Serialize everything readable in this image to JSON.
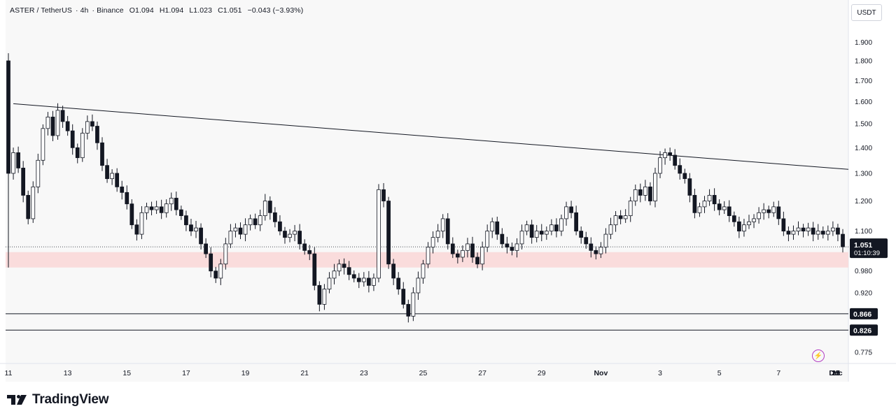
{
  "header": {
    "symbol": "ASTER / TetherUS",
    "interval": "4h",
    "exchange": "Binance",
    "open": "O1.094",
    "high": "H1.094",
    "low": "L1.023",
    "close": "C1.051",
    "change": "−0.043 (−3.93%)"
  },
  "price_scale": {
    "unit": "USDT",
    "current_price": "1.051",
    "countdown": "01:10:39",
    "level_labels": [
      "0.866",
      "0.826"
    ]
  },
  "brand": {
    "name": "TradingView"
  },
  "colors": {
    "candle": "#131722",
    "background": "#ffffff",
    "plot_background": "#f8f8f8",
    "support_zone": "#fadcdc",
    "trendline": "#131722",
    "flash_icon": "#b33fc2"
  },
  "icons": {
    "flash": "lightning-icon",
    "brand": "tradingview-logo-icon"
  },
  "chart_data": {
    "type": "candlestick",
    "title": "",
    "x_tick_labels": [
      "11",
      "13",
      "15",
      "17",
      "19",
      "21",
      "23",
      "25",
      "27",
      "29",
      "Nov",
      "3",
      "5",
      "7",
      "9",
      "11",
      "13",
      "15",
      "17",
      "19",
      "21",
      "23",
      "25",
      "27",
      "29",
      "Dec"
    ],
    "x_tick_index": [
      0,
      12,
      24,
      36,
      48,
      60,
      72,
      84,
      96,
      108,
      120,
      132,
      144,
      156,
      168,
      180,
      192,
      204,
      216,
      228,
      240,
      252,
      264,
      276,
      288,
      300
    ],
    "y_tick_labels": [
      "1.900",
      "1.800",
      "1.700",
      "1.600",
      "1.500",
      "1.400",
      "1.300",
      "1.200",
      "1.100",
      "0.980",
      "0.920",
      "0.775"
    ],
    "y_ticks": [
      1.9,
      1.8,
      1.7,
      1.6,
      1.5,
      1.4,
      1.3,
      1.2,
      1.1,
      0.98,
      0.92,
      0.775
    ],
    "y_scale": "log",
    "y_range": [
      0.75,
      2.02
    ],
    "support_zone": [
      0.99,
      1.035
    ],
    "horizontal_levels": [
      0.866,
      0.826
    ],
    "current_price": 1.051,
    "trendline": {
      "from": {
        "index": 1,
        "price": 1.59
      },
      "to": {
        "index": 310,
        "price": 1.315
      }
    },
    "closes": [
      1.3,
      1.38,
      1.32,
      1.22,
      1.14,
      1.25,
      1.35,
      1.48,
      1.53,
      1.45,
      1.56,
      1.51,
      1.47,
      1.4,
      1.36,
      1.46,
      1.51,
      1.49,
      1.42,
      1.33,
      1.28,
      1.3,
      1.25,
      1.23,
      1.19,
      1.12,
      1.09,
      1.16,
      1.18,
      1.17,
      1.18,
      1.16,
      1.19,
      1.21,
      1.17,
      1.15,
      1.12,
      1.1,
      1.11,
      1.06,
      1.03,
      0.98,
      0.96,
      1.0,
      1.06,
      1.1,
      1.11,
      1.09,
      1.12,
      1.14,
      1.12,
      1.15,
      1.2,
      1.16,
      1.13,
      1.1,
      1.08,
      1.09,
      1.1,
      1.06,
      1.04,
      1.03,
      0.94,
      0.89,
      0.93,
      0.96,
      0.98,
      1.0,
      0.99,
      0.97,
      0.96,
      0.95,
      0.96,
      0.94,
      0.96,
      1.24,
      1.2,
      1.0,
      0.96,
      0.93,
      0.89,
      0.86,
      0.92,
      0.96,
      1.0,
      1.05,
      1.08,
      1.1,
      1.14,
      1.06,
      1.03,
      1.02,
      1.04,
      1.06,
      1.02,
      1.0,
      1.05,
      1.1,
      1.13,
      1.09,
      1.06,
      1.05,
      1.04,
      1.06,
      1.1,
      1.12,
      1.08,
      1.1,
      1.09,
      1.1,
      1.12,
      1.1,
      1.14,
      1.18,
      1.16,
      1.1,
      1.08,
      1.06,
      1.04,
      1.03,
      1.05,
      1.09,
      1.12,
      1.15,
      1.14,
      1.15,
      1.2,
      1.24,
      1.22,
      1.25,
      1.2,
      1.3,
      1.36,
      1.38,
      1.37,
      1.33,
      1.3,
      1.28,
      1.22,
      1.16,
      1.18,
      1.2,
      1.22,
      1.19,
      1.17,
      1.18,
      1.15,
      1.13,
      1.1,
      1.12,
      1.13,
      1.14,
      1.16,
      1.17,
      1.16,
      1.18,
      1.14,
      1.1,
      1.09,
      1.1,
      1.11,
      1.1,
      1.11,
      1.09,
      1.1,
      1.09,
      1.1,
      1.11,
      1.09,
      1.051
    ]
  }
}
